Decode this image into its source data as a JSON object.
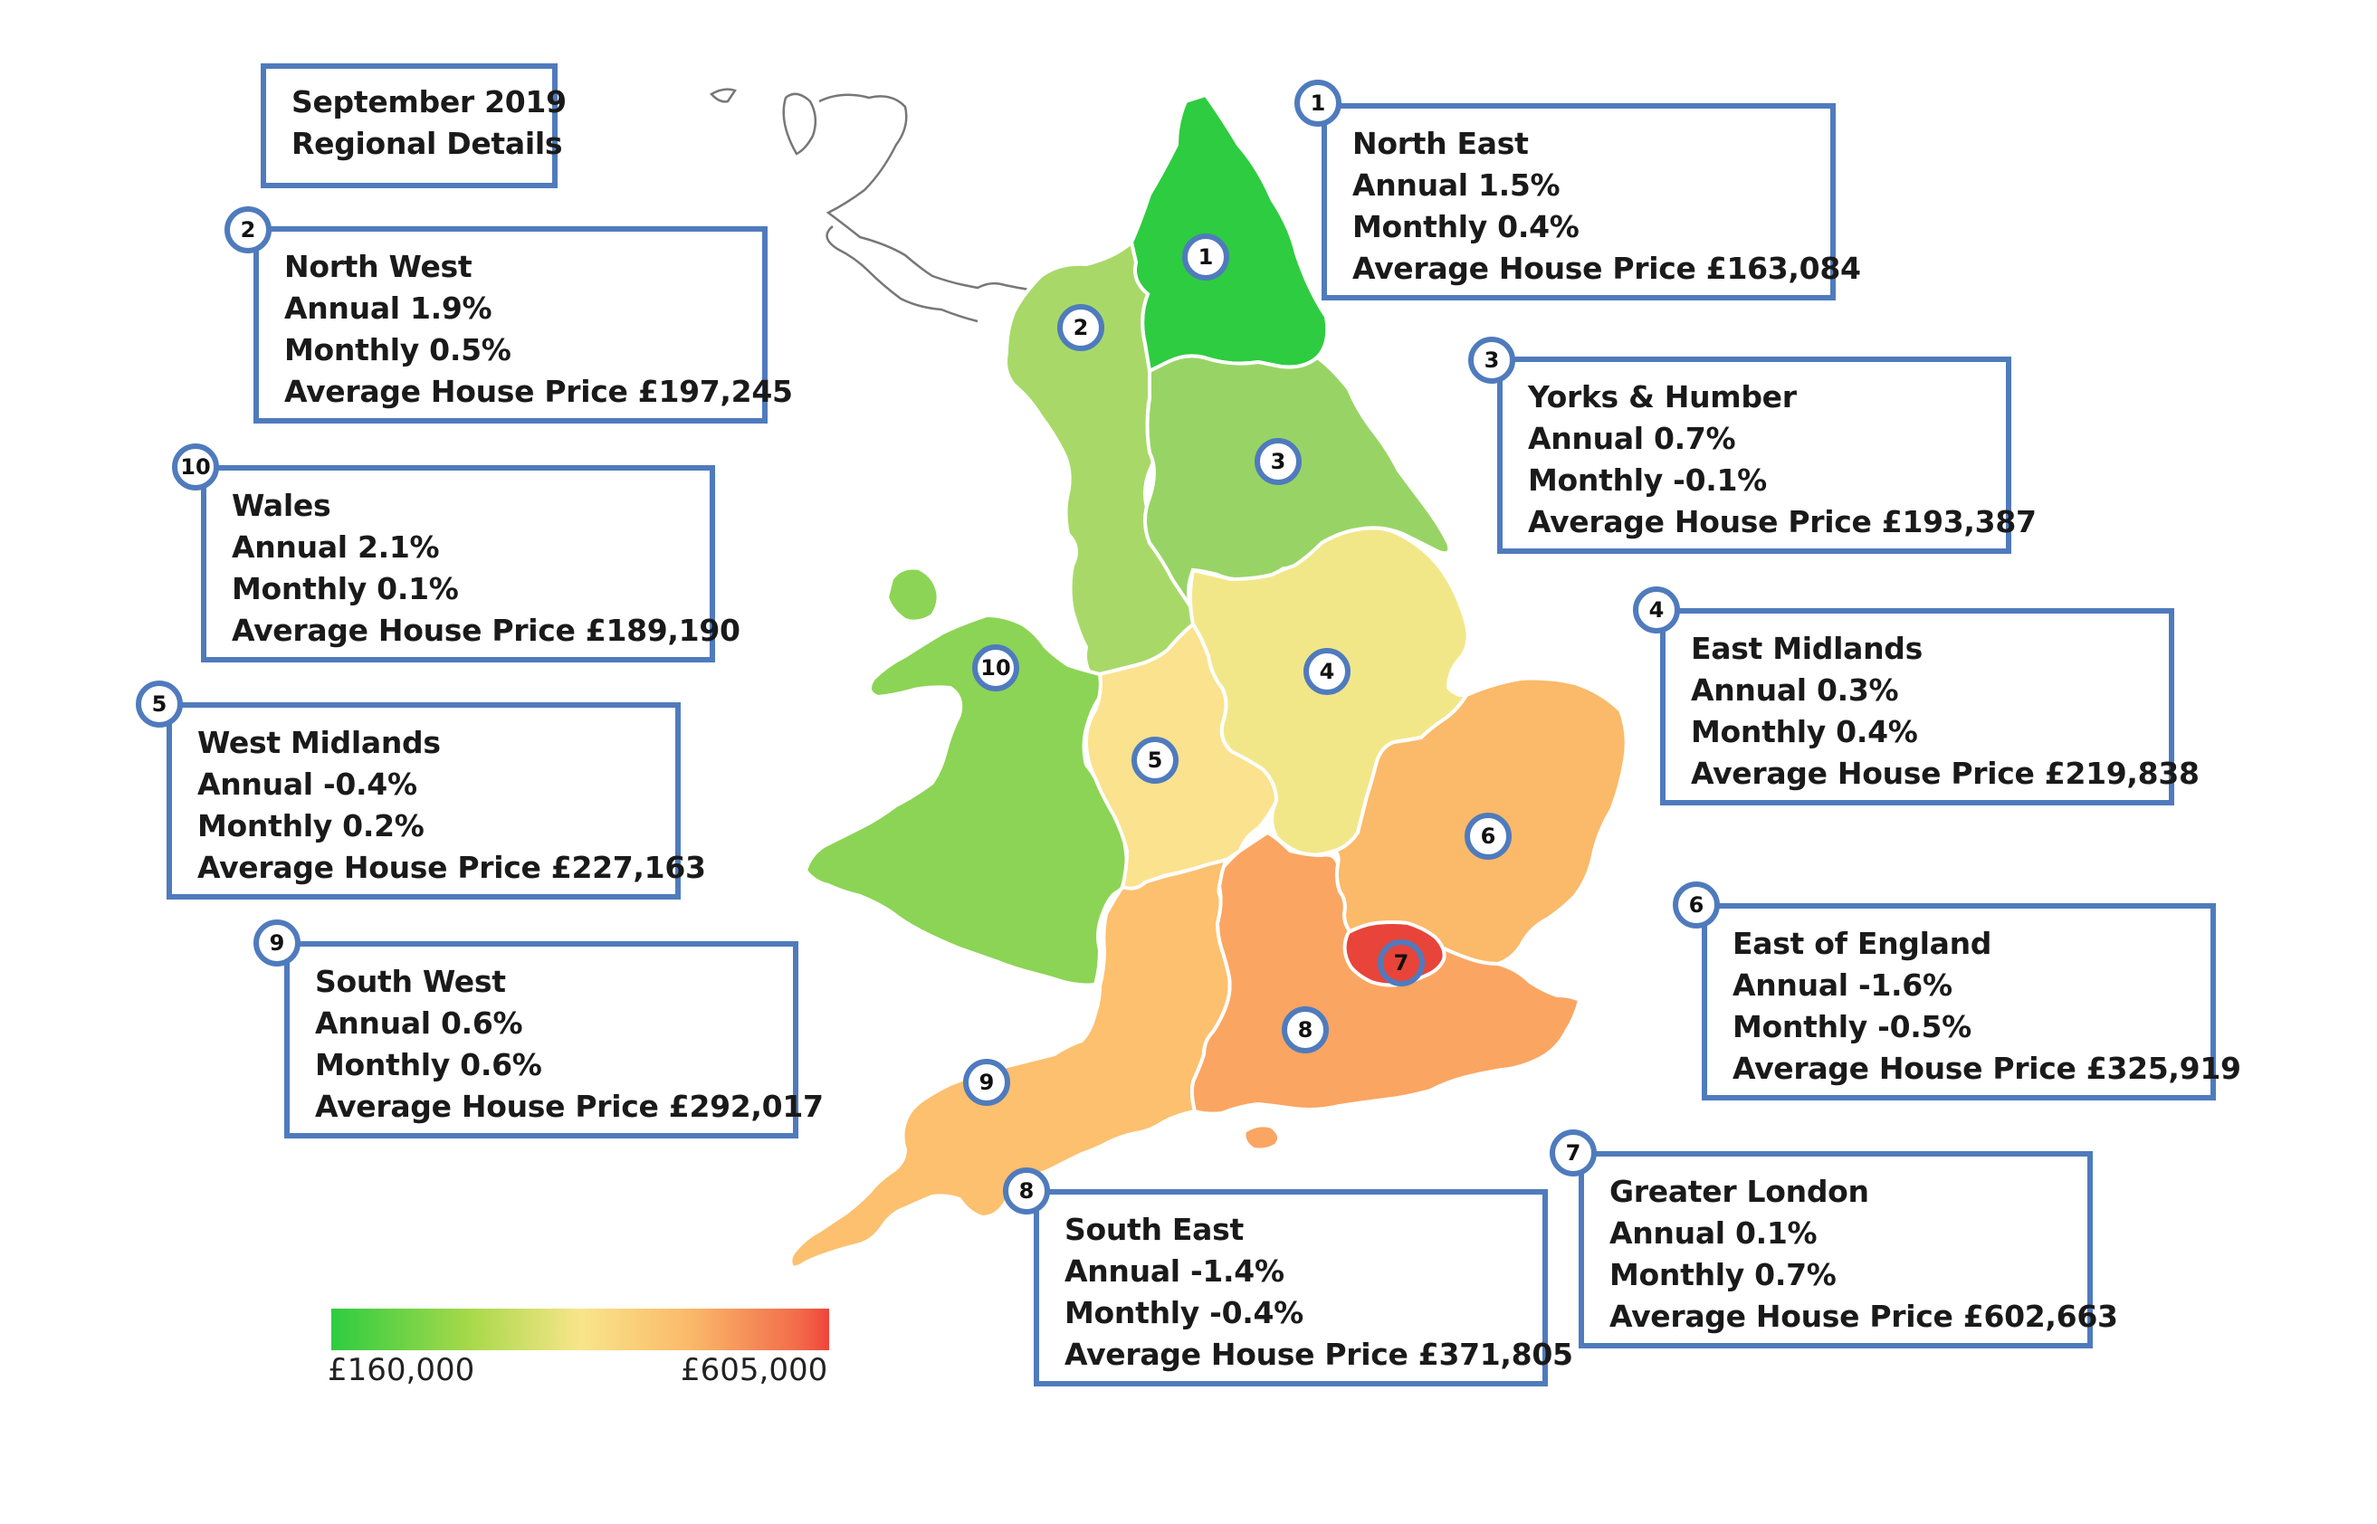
{
  "title": {
    "line1": "September 2019",
    "line2": "Regional Details"
  },
  "regions": [
    {
      "number": "1",
      "name": "North East",
      "annual": "Annual 1.5%",
      "monthly": "Monthly 0.4%",
      "price": "Average House Price £163,084",
      "fill": "#2ecc40"
    },
    {
      "number": "2",
      "name": "North West",
      "annual": "Annual 1.9%",
      "monthly": "Monthly 0.5%",
      "price": "Average House Price £197,245",
      "fill": "#a8d968"
    },
    {
      "number": "3",
      "name": "Yorks & Humber",
      "annual": "Annual 0.7%",
      "monthly": "Monthly -0.1%",
      "price": "Average House Price £193,387",
      "fill": "#98d465"
    },
    {
      "number": "4",
      "name": "East Midlands",
      "annual": "Annual 0.3%",
      "monthly": "Monthly 0.4%",
      "price": "Average House Price £219,838",
      "fill": "#f2e788"
    },
    {
      "number": "5",
      "name": "West Midlands",
      "annual": "Annual -0.4%",
      "monthly": "Monthly 0.2%",
      "price": "Average House Price £227,163",
      "fill": "#fbe28e"
    },
    {
      "number": "6",
      "name": "East of England",
      "annual": "Annual -1.6%",
      "monthly": "Monthly -0.5%",
      "price": "Average House Price £325,919",
      "fill": "#fbb96a"
    },
    {
      "number": "7",
      "name": "Greater London",
      "annual": "Annual 0.1%",
      "monthly": "Monthly 0.7%",
      "price": "Average House Price £602,663",
      "fill": "#e8443a"
    },
    {
      "number": "8",
      "name": "South East",
      "annual": "Annual -1.4%",
      "monthly": "Monthly -0.4%",
      "price": "Average House Price £371,805",
      "fill": "#fba562"
    },
    {
      "number": "9",
      "name": "South West",
      "annual": "Annual 0.6%",
      "monthly": "Monthly 0.6%",
      "price": "Average House Price £292,017",
      "fill": "#fcc06e"
    },
    {
      "number": "10",
      "name": "Wales",
      "annual": "Annual 2.1%",
      "monthly": "Monthly 0.1%",
      "price": "Average House Price £189,190",
      "fill": "#8cd455"
    }
  ],
  "legend": {
    "min_label": "£160,000",
    "max_label": "£605,000",
    "color_low": "#2ecc40",
    "color_mid": "#f8e58a",
    "color_high": "#f0443a"
  },
  "colors": {
    "border": "#4f7bbd",
    "region_outline": "#ffffff",
    "scotland_outline": "#777777"
  }
}
